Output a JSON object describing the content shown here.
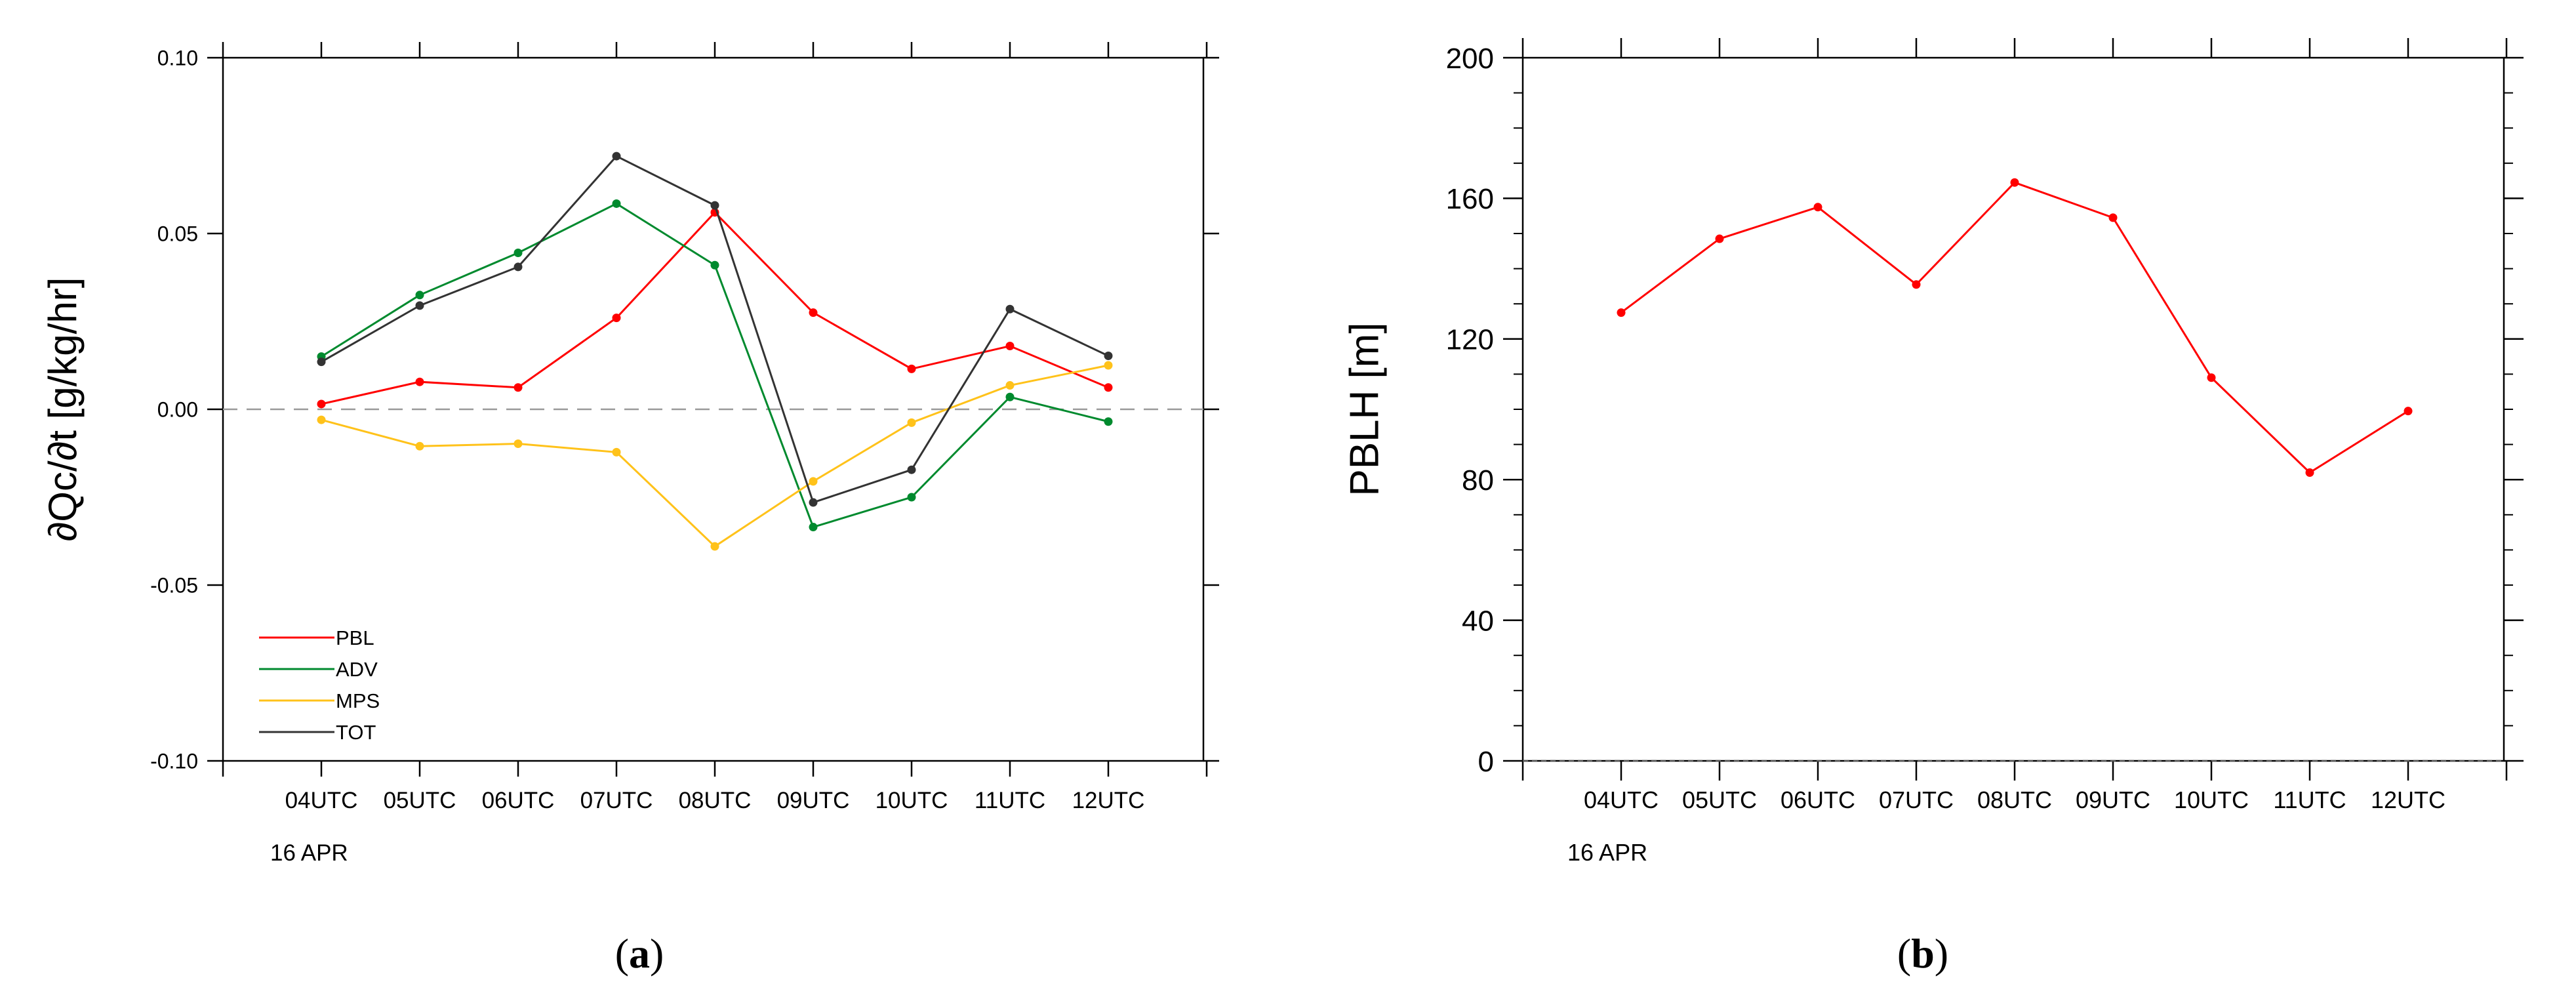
{
  "chart_data": [
    {
      "type": "line",
      "panel_label": "(a)",
      "panel_letter": "a",
      "ylabel": "∂Qc/∂t [g/kg/hr]",
      "xlabel": "",
      "date_label": "16 APR",
      "categories": [
        "04UTC",
        "05UTC",
        "06UTC",
        "07UTC",
        "08UTC",
        "09UTC",
        "10UTC",
        "11UTC",
        "12UTC"
      ],
      "ylim": [
        -0.1,
        0.1
      ],
      "yticks": [
        -0.1,
        -0.05,
        0.0,
        0.05,
        0.1
      ],
      "ytick_labels": [
        "-0.10",
        "-0.05",
        "0.00",
        "0.05",
        "0.10"
      ],
      "zero_line": true,
      "legend_position": "bottom-left",
      "series": [
        {
          "name": "PBL",
          "color": "#ff0000",
          "values": [
            0.0015,
            0.0078,
            0.0062,
            0.026,
            0.056,
            0.0275,
            0.0115,
            0.018,
            0.0062
          ]
        },
        {
          "name": "ADV",
          "color": "#008a2e",
          "values": [
            0.015,
            0.0325,
            0.0445,
            0.0585,
            0.041,
            -0.0335,
            -0.025,
            0.0035,
            -0.0035
          ]
        },
        {
          "name": "MPS",
          "color": "#ffc21a",
          "values": [
            -0.003,
            -0.0105,
            -0.0098,
            -0.0122,
            -0.039,
            -0.0205,
            -0.0038,
            0.0068,
            0.0125
          ]
        },
        {
          "name": "TOT",
          "color": "#333333",
          "values": [
            0.0135,
            0.0295,
            0.0405,
            0.072,
            0.058,
            -0.0265,
            -0.0172,
            0.0285,
            0.0152
          ]
        }
      ]
    },
    {
      "type": "line",
      "panel_label": "(b)",
      "panel_letter": "b",
      "ylabel": "PBLH [m]",
      "xlabel": "",
      "date_label": "16 APR",
      "categories": [
        "04UTC",
        "05UTC",
        "06UTC",
        "07UTC",
        "08UTC",
        "09UTC",
        "10UTC",
        "11UTC",
        "12UTC"
      ],
      "ylim": [
        0,
        200
      ],
      "yticks": [
        0,
        40,
        80,
        120,
        160,
        200
      ],
      "ytick_labels": [
        "0",
        "40",
        "80",
        "120",
        "160",
        "200"
      ],
      "zero_line": true,
      "series": [
        {
          "name": "PBLH",
          "color": "#ff0000",
          "values": [
            127.5,
            148.5,
            157.5,
            135.5,
            164.5,
            154.5,
            109,
            82,
            99.5
          ]
        }
      ]
    }
  ]
}
